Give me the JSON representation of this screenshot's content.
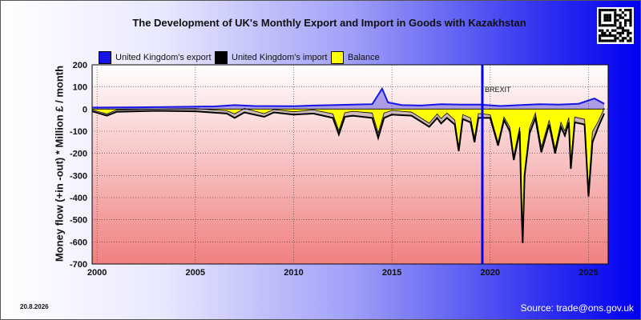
{
  "date": "20.8.2026",
  "source": "Source: trade@ons.gov.uk",
  "chart_data": {
    "type": "area",
    "title": "The Development of UK's Monthly Export and Import in Goods with Kazakhstan",
    "ylabel": "Money flow (+in -out) * Million £ / month",
    "xlabel": "",
    "ylim": [
      -700,
      200
    ],
    "xlim": [
      1999.75,
      2026.0
    ],
    "yticks": [
      200,
      100,
      0,
      -100,
      -200,
      -300,
      -400,
      -500,
      -600,
      -700
    ],
    "xticks": [
      2000,
      2005,
      2010,
      2015,
      2020,
      2025
    ],
    "grid": true,
    "legend": "top",
    "annotation": {
      "text": "BREXIT",
      "x": 2019.6
    },
    "series": [
      {
        "name": "United Kingdom's export",
        "color": "#1515e6",
        "points": [
          [
            1999.75,
            7
          ],
          [
            2002,
            8
          ],
          [
            2004,
            10
          ],
          [
            2006,
            12
          ],
          [
            2007,
            18
          ],
          [
            2008,
            14
          ],
          [
            2010,
            13
          ],
          [
            2011,
            16
          ],
          [
            2012,
            18
          ],
          [
            2013,
            20
          ],
          [
            2014,
            22
          ],
          [
            2014.5,
            92
          ],
          [
            2014.8,
            30
          ],
          [
            2015.5,
            18
          ],
          [
            2016.5,
            16
          ],
          [
            2017.5,
            22
          ],
          [
            2018.5,
            20
          ],
          [
            2019.5,
            20
          ],
          [
            2020.5,
            14
          ],
          [
            2021.5,
            18
          ],
          [
            2022.5,
            22
          ],
          [
            2023.5,
            20
          ],
          [
            2024.5,
            24
          ],
          [
            2025.3,
            48
          ],
          [
            2025.8,
            24
          ]
        ]
      },
      {
        "name": "United Kingdom's import",
        "color": "#000000",
        "points": [
          [
            1999.75,
            -10
          ],
          [
            2000.5,
            -30
          ],
          [
            2001,
            -12
          ],
          [
            2003,
            -8
          ],
          [
            2005,
            -10
          ],
          [
            2006.6,
            -20
          ],
          [
            2007,
            -40
          ],
          [
            2007.5,
            -15
          ],
          [
            2008.5,
            -35
          ],
          [
            2009,
            -15
          ],
          [
            2010,
            -25
          ],
          [
            2011,
            -20
          ],
          [
            2012,
            -40
          ],
          [
            2012.3,
            -115
          ],
          [
            2012.6,
            -35
          ],
          [
            2013,
            -30
          ],
          [
            2014,
            -40
          ],
          [
            2014.3,
            -130
          ],
          [
            2014.6,
            -40
          ],
          [
            2015,
            -25
          ],
          [
            2016,
            -30
          ],
          [
            2016.9,
            -80
          ],
          [
            2017.3,
            -40
          ],
          [
            2017.5,
            -65
          ],
          [
            2017.8,
            -40
          ],
          [
            2018.2,
            -70
          ],
          [
            2018.4,
            -190
          ],
          [
            2018.6,
            -45
          ],
          [
            2019,
            -60
          ],
          [
            2019.2,
            -150
          ],
          [
            2019.4,
            -40
          ],
          [
            2020,
            -40
          ],
          [
            2020.4,
            -165
          ],
          [
            2020.7,
            -50
          ],
          [
            2021,
            -100
          ],
          [
            2021.2,
            -230
          ],
          [
            2021.5,
            -100
          ],
          [
            2021.6,
            -470
          ],
          [
            2021.65,
            -605
          ],
          [
            2021.75,
            -300
          ],
          [
            2022,
            -110
          ],
          [
            2022.3,
            -40
          ],
          [
            2022.6,
            -195
          ],
          [
            2023,
            -70
          ],
          [
            2023.3,
            -200
          ],
          [
            2023.6,
            -80
          ],
          [
            2023.8,
            -120
          ],
          [
            2024,
            -60
          ],
          [
            2024.1,
            -270
          ],
          [
            2024.3,
            -60
          ],
          [
            2024.8,
            -70
          ],
          [
            2025,
            -395
          ],
          [
            2025.2,
            -150
          ],
          [
            2025.5,
            -80
          ],
          [
            2025.8,
            -20
          ]
        ]
      },
      {
        "name": "Balance",
        "color": "#ffff00",
        "points": [
          [
            1999.75,
            -3
          ],
          [
            2000.5,
            -22
          ],
          [
            2001,
            -4
          ],
          [
            2003,
            0
          ],
          [
            2005,
            2
          ],
          [
            2006.6,
            -8
          ],
          [
            2007,
            -22
          ],
          [
            2007.5,
            3
          ],
          [
            2008.5,
            -21
          ],
          [
            2009,
            -2
          ],
          [
            2010,
            -12
          ],
          [
            2011,
            -4
          ],
          [
            2012,
            -22
          ],
          [
            2012.3,
            -97
          ],
          [
            2012.6,
            -17
          ],
          [
            2013,
            -10
          ],
          [
            2014,
            -18
          ],
          [
            2014.3,
            -108
          ],
          [
            2014.6,
            -18
          ],
          [
            2015,
            -6
          ],
          [
            2016,
            -14
          ],
          [
            2016.9,
            -64
          ],
          [
            2017.3,
            -22
          ],
          [
            2017.5,
            -43
          ],
          [
            2017.8,
            -18
          ],
          [
            2018.2,
            -50
          ],
          [
            2018.4,
            -170
          ],
          [
            2018.6,
            -25
          ],
          [
            2019,
            -40
          ],
          [
            2019.2,
            -130
          ],
          [
            2019.4,
            -20
          ],
          [
            2020,
            -26
          ],
          [
            2020.4,
            -151
          ],
          [
            2020.7,
            -36
          ],
          [
            2021,
            -82
          ],
          [
            2021.2,
            -212
          ],
          [
            2021.5,
            -82
          ],
          [
            2021.6,
            -452
          ],
          [
            2021.65,
            -585
          ],
          [
            2021.75,
            -282
          ],
          [
            2022,
            -88
          ],
          [
            2022.3,
            -18
          ],
          [
            2022.6,
            -173
          ],
          [
            2023,
            -50
          ],
          [
            2023.3,
            -180
          ],
          [
            2023.6,
            -60
          ],
          [
            2023.8,
            -100
          ],
          [
            2024,
            -38
          ],
          [
            2024.1,
            -246
          ],
          [
            2024.3,
            -36
          ],
          [
            2024.8,
            -46
          ],
          [
            2025,
            -360
          ],
          [
            2025.2,
            -102
          ],
          [
            2025.5,
            -56
          ],
          [
            2025.8,
            4
          ]
        ]
      }
    ]
  }
}
